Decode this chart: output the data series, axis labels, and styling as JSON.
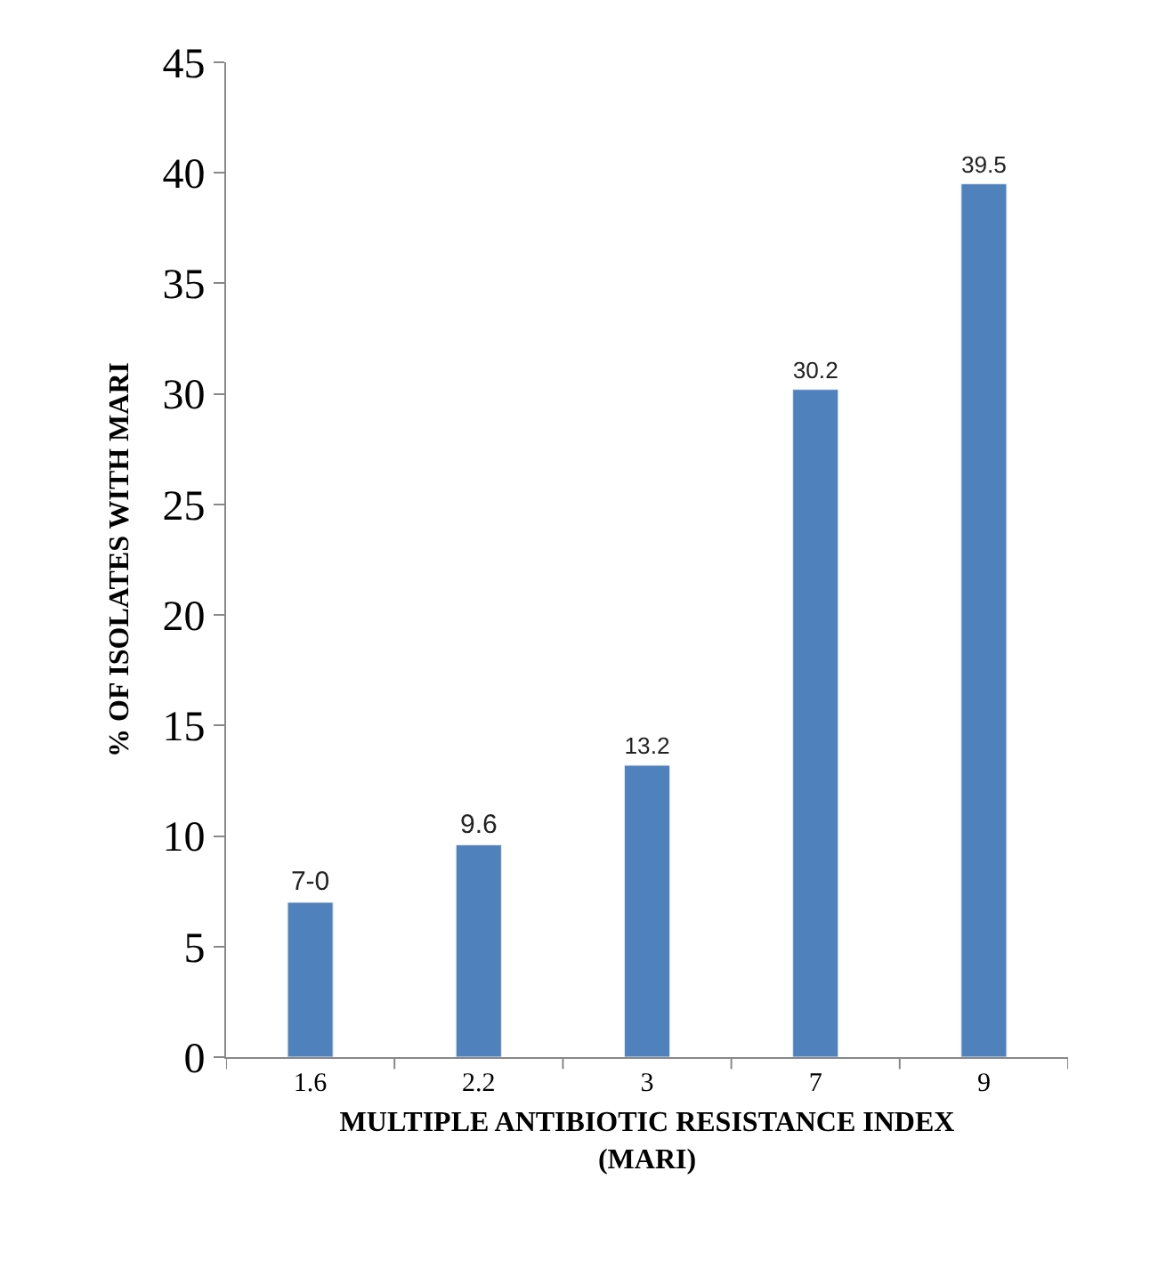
{
  "chart_data": {
    "type": "bar",
    "xlabel": "MULTIPLE ANTIBIOTIC RESISTANCE INDEX\n(MARI)",
    "ylabel": "% OF ISOLATES WITH MARI",
    "categories": [
      "1.6",
      "2.2",
      "3",
      "7",
      "9"
    ],
    "values": [
      7.0,
      9.6,
      13.2,
      30.2,
      39.5
    ],
    "value_labels": [
      "7-0",
      "9.6",
      "13.2",
      "30.2",
      "39.5"
    ],
    "color": "#4f81bd",
    "ylim": [
      0,
      45
    ],
    "yticks": [
      0,
      5,
      10,
      15,
      20,
      25,
      30,
      35,
      40,
      45
    ]
  }
}
